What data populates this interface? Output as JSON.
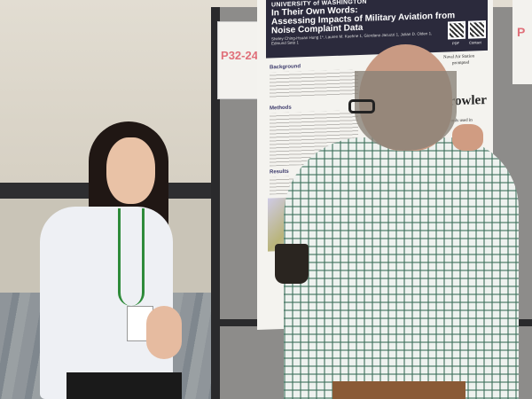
{
  "scene": {
    "description_tag": "poster-session"
  },
  "signs": {
    "left_code": "P32-24",
    "right_partial": "P"
  },
  "poster": {
    "university": "UNIVERSITY of WASHINGTON",
    "title_lines": [
      "In Their Own Words:",
      "Assessing Impacts of Military Aviation from",
      "Noise Complaint Data"
    ],
    "authors": "Shirley Ching-Hsuan Hung 1*, Lauren M. Kuehne 1, Giordano Jacuzzi 1, Julian D. Olden 1, Edmund Seto 1",
    "qr_labels": [
      "PDF",
      "Contact"
    ],
    "sections": [
      "Background",
      "Methods",
      "Results"
    ],
    "wordcloud": {
      "caption_top": "Naval Air Station",
      "caption_top2": "prompted",
      "big_word": "Growler",
      "caption_bottom": "words used in"
    }
  },
  "colors": {
    "poster_header": "#2b2a3c",
    "lanyard": "#2e8b3a",
    "sign_code": "#e0707a"
  }
}
